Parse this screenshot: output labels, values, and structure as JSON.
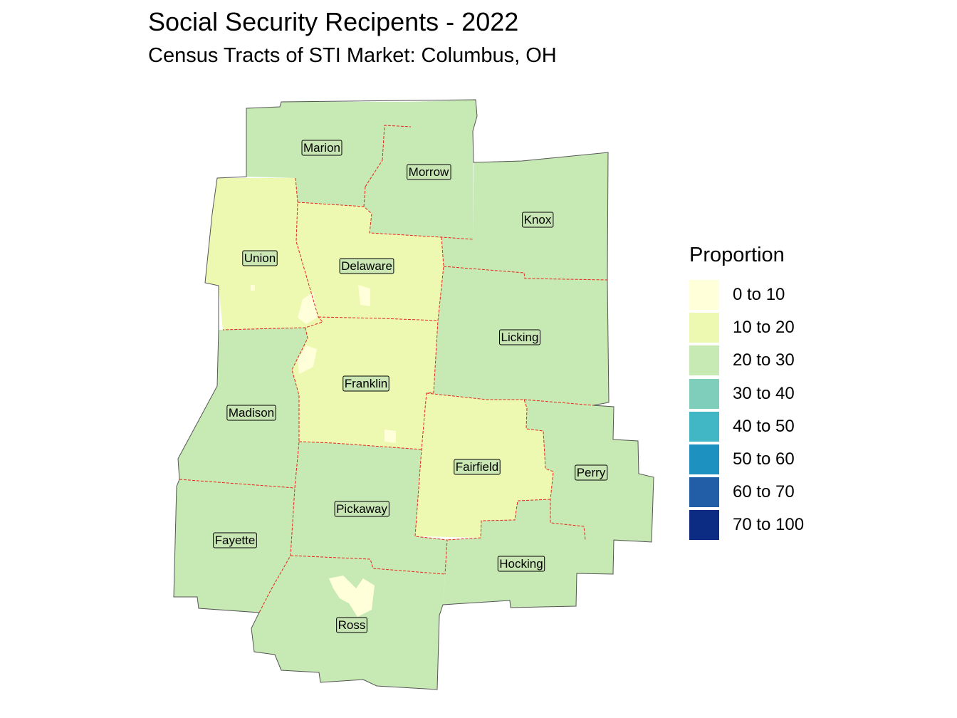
{
  "title": "Social Security Recipents - 2022",
  "subtitle": "Census Tracts of STI Market: Columbus, OH",
  "legend": {
    "title": "Proportion",
    "items": [
      {
        "label": "0 to 10",
        "color": "#ffffd9"
      },
      {
        "label": "10 to 20",
        "color": "#edf8b1"
      },
      {
        "label": "20 to 30",
        "color": "#c7e9b4"
      },
      {
        "label": "30 to 40",
        "color": "#7fcdbb"
      },
      {
        "label": "40 to 50",
        "color": "#41b6c4"
      },
      {
        "label": "50 to 60",
        "color": "#1d91c0"
      },
      {
        "label": "60 to 70",
        "color": "#225ea8"
      },
      {
        "label": "70 to 100",
        "color": "#0c2c84"
      }
    ]
  },
  "counties": [
    {
      "name": "Marion",
      "class": "20 to 30"
    },
    {
      "name": "Morrow",
      "class": "20 to 30"
    },
    {
      "name": "Knox",
      "class": "20 to 30"
    },
    {
      "name": "Union",
      "class": "10 to 20"
    },
    {
      "name": "Delaware",
      "class": "10 to 20"
    },
    {
      "name": "Licking",
      "class": "20 to 30"
    },
    {
      "name": "Franklin",
      "class": "10 to 20"
    },
    {
      "name": "Madison",
      "class": "20 to 30"
    },
    {
      "name": "Fairfield",
      "class": "10 to 20"
    },
    {
      "name": "Perry",
      "class": "20 to 30"
    },
    {
      "name": "Pickaway",
      "class": "20 to 30"
    },
    {
      "name": "Fayette",
      "class": "20 to 30"
    },
    {
      "name": "Hocking",
      "class": "20 to 30"
    },
    {
      "name": "Ross",
      "class": "20 to 30"
    }
  ]
}
